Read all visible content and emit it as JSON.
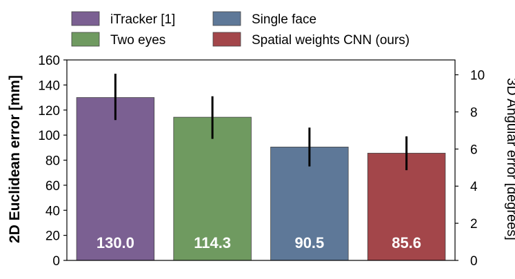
{
  "chart_data": {
    "type": "bar",
    "categories": [
      "iTracker [1]",
      "Two eyes",
      "Single face",
      "Spatial weights CNN (ours)"
    ],
    "values": [
      130.0,
      114.3,
      90.5,
      85.6
    ],
    "value_labels": [
      "130.0",
      "114.3",
      "90.5",
      "85.6"
    ],
    "error_low": [
      112,
      97,
      75,
      72
    ],
    "error_high": [
      149,
      131,
      106,
      99
    ],
    "colors": [
      "#7b6092",
      "#6f9a60",
      "#5e7898",
      "#a3464a"
    ],
    "legend": {
      "placement": "top",
      "entries": [
        "iTracker [1]",
        "Two eyes",
        "Single face",
        "Spatial weights CNN (ours)"
      ]
    },
    "ylabel": "2D Euclidean error [mm]",
    "ylim": [
      0,
      160
    ],
    "yticks": [
      0,
      20,
      40,
      60,
      80,
      100,
      120,
      140,
      160
    ],
    "y2label": "3D Angular error [degrees]",
    "y2lim": [
      0,
      10.8
    ],
    "y2ticks": [
      0,
      2,
      4,
      6,
      8,
      10
    ],
    "grid": false
  }
}
